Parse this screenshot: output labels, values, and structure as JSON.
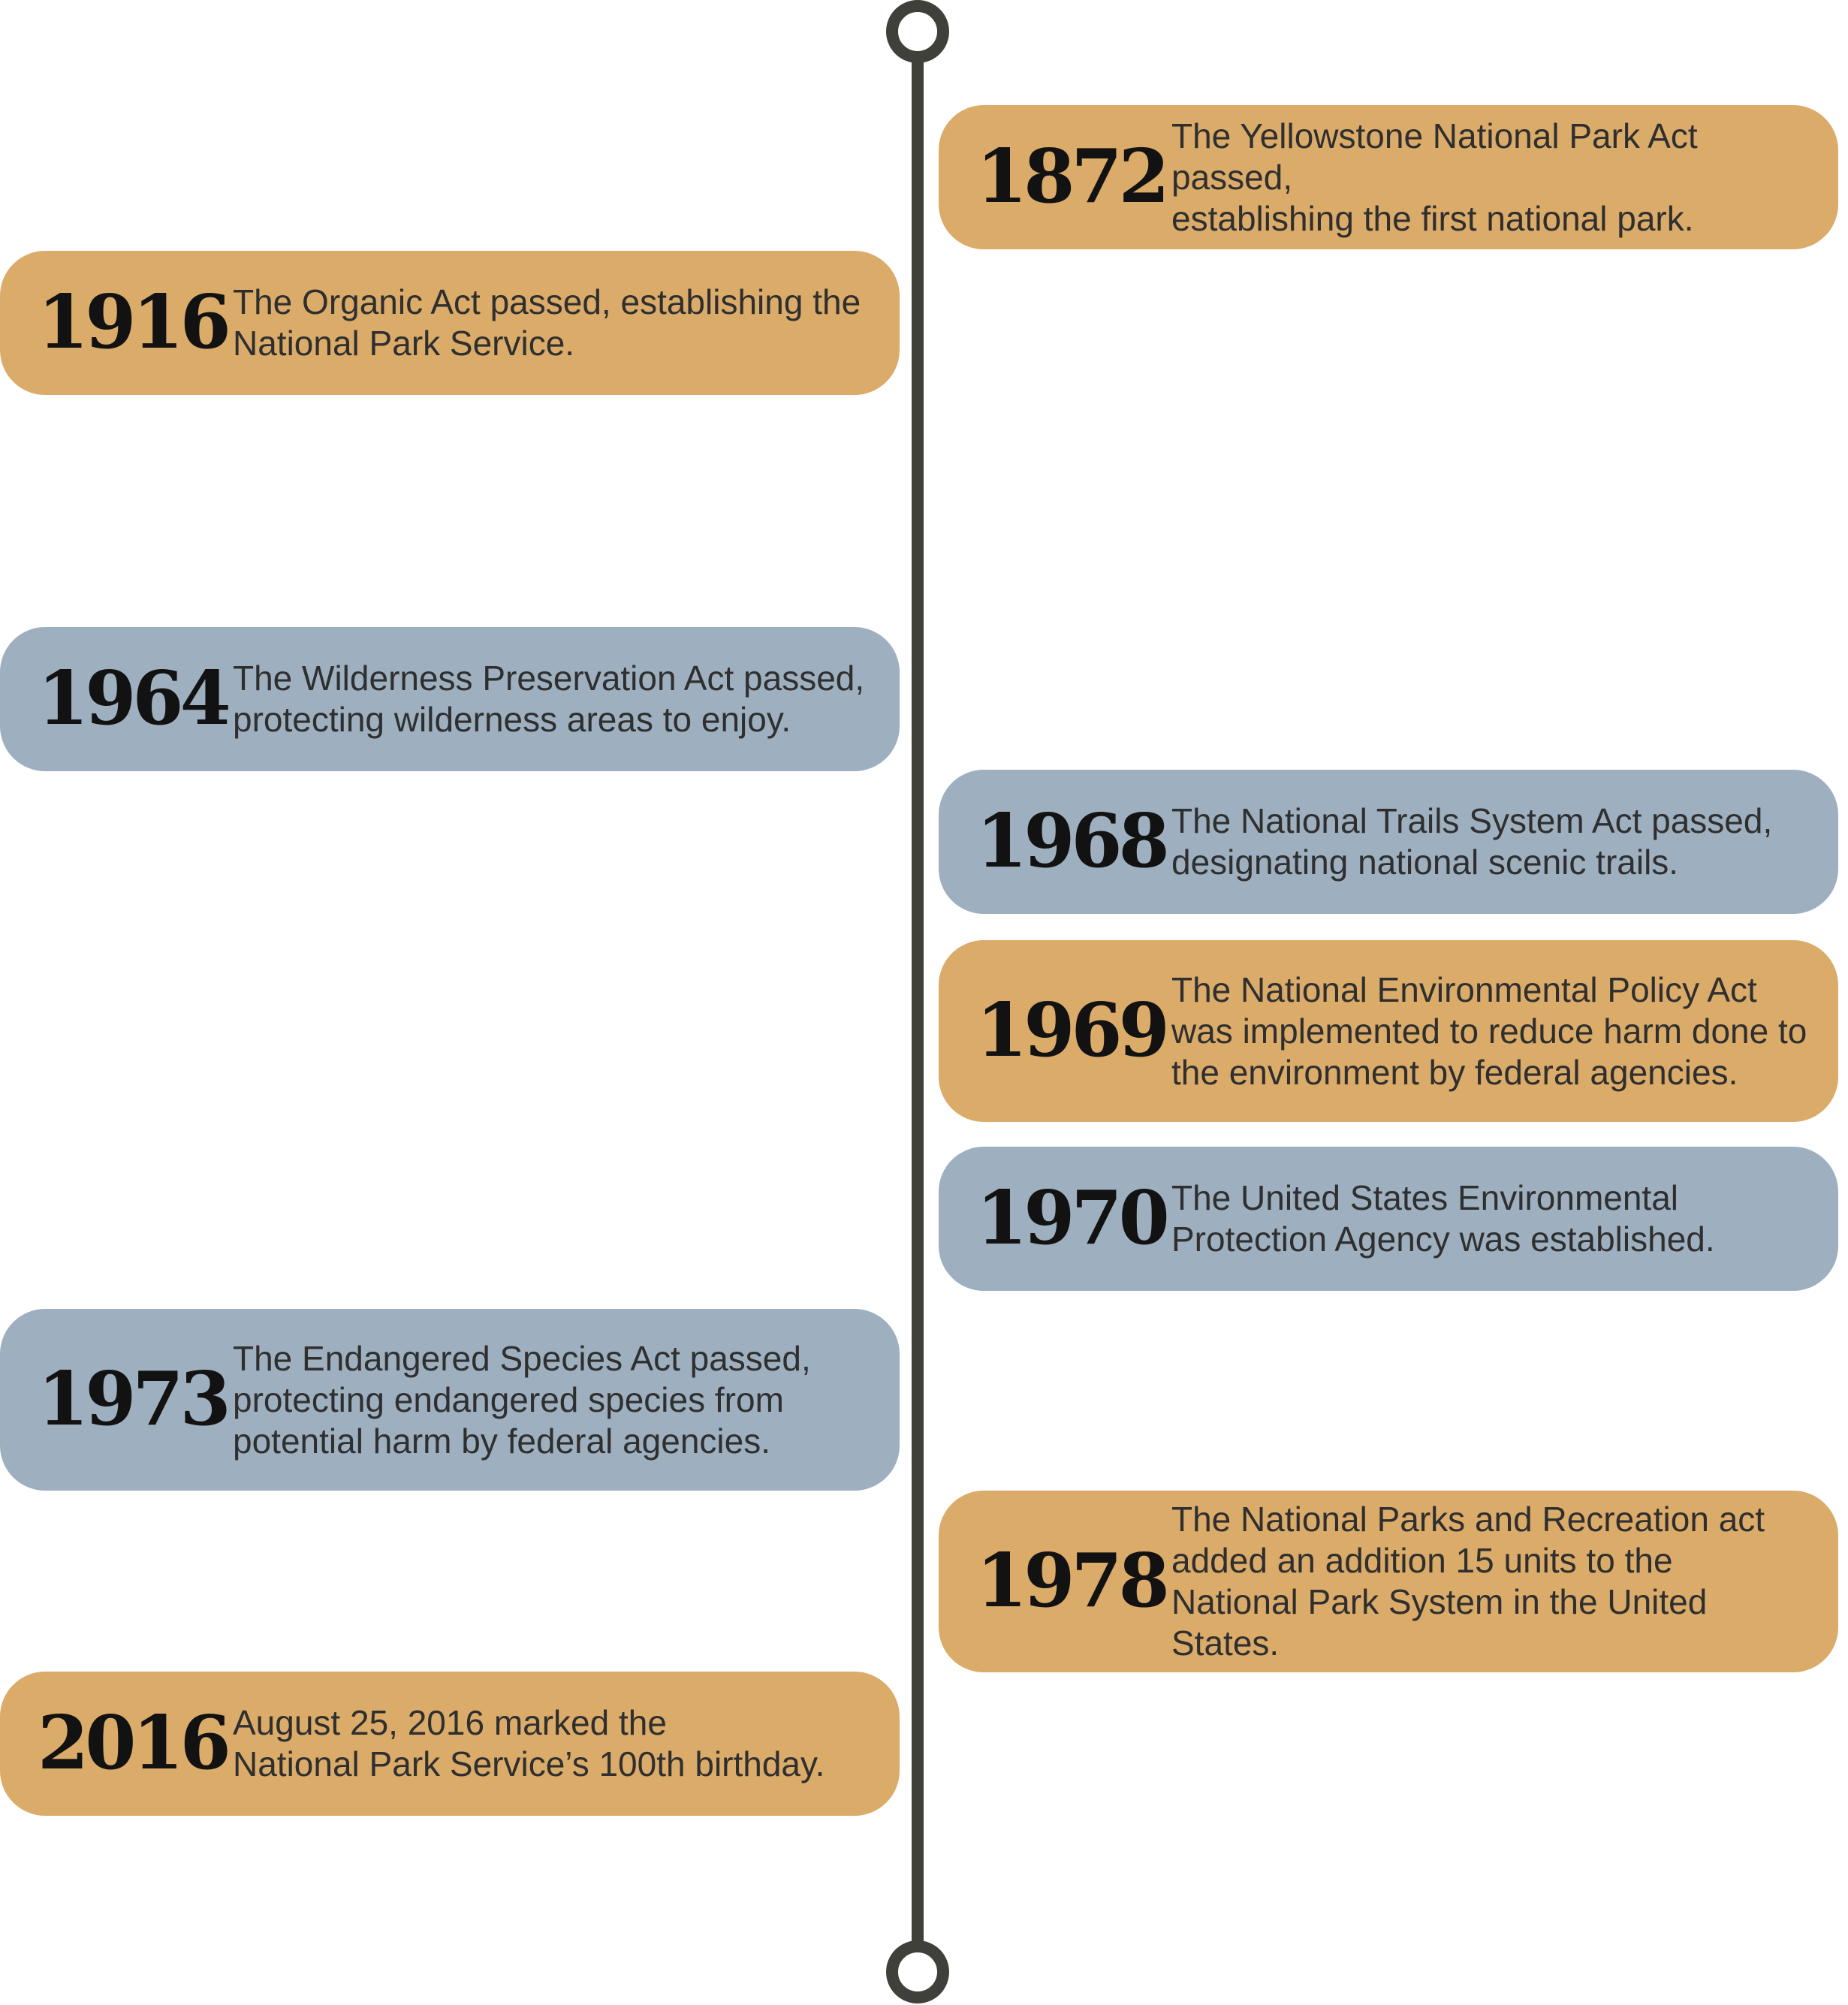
{
  "timeline": {
    "events": [
      {
        "year": "1872",
        "text": "The Yellowstone National Park Act passed,\nestablishing the first national park.",
        "color": "#dbab69"
      },
      {
        "year": "1916",
        "text": "The Organic Act passed, establishing the\nNational Park Service.",
        "color": "#dbab69"
      },
      {
        "year": "1964",
        "text": "The Wilderness Preservation Act passed,\nprotecting wilderness areas to enjoy.",
        "color": "#9eb0c0"
      },
      {
        "year": "1968",
        "text": "The National Trails System Act passed,\ndesignating national scenic trails.",
        "color": "#9eb0c0"
      },
      {
        "year": "1969",
        "text": "The National Environmental Policy Act\nwas implemented to reduce harm done to\nthe environment by federal agencies.",
        "color": "#dbab69"
      },
      {
        "year": "1970",
        "text": "The United States Environmental\nProtection Agency was established.",
        "color": "#9eb0c0"
      },
      {
        "year": "1973",
        "text": "The Endangered Species Act passed,\nprotecting endangered species from\npotential harm by federal agencies.",
        "color": "#9eb0c0"
      },
      {
        "year": "1978",
        "text": "The National Parks and Recreation act\nadded an addition 15 units to the\nNational Park System in the United States.",
        "color": "#dbab69"
      },
      {
        "year": "2016",
        "text": "August 25, 2016 marked the\nNational Park Service’s 100th birthday.",
        "color": "#dbab69"
      }
    ]
  },
  "colors": {
    "gold": "#dbab69",
    "blue": "#9eb0c0",
    "axis": "#3f403a",
    "year_text": "#121212",
    "body_text": "#2f2f2f"
  }
}
